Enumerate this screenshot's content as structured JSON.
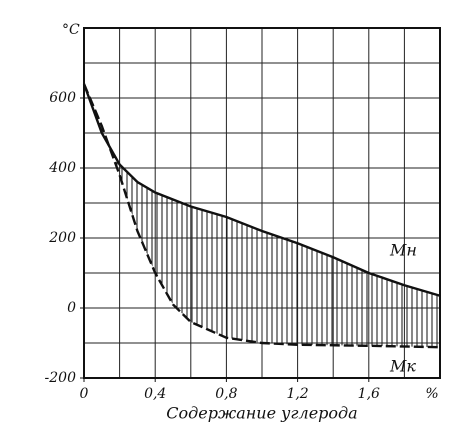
{
  "chart_data": {
    "type": "line",
    "y_label": "°C",
    "x_label": "Содержание углерода",
    "x_unit": "%",
    "xlim": [
      0,
      2.0
    ],
    "ylim": [
      -200,
      800
    ],
    "xticks": [
      0,
      {
        "value": 0.4,
        "label": "0,4"
      },
      {
        "value": 0.8,
        "label": "0,8"
      },
      {
        "value": 1.2,
        "label": "1,2"
      },
      {
        "value": 1.6,
        "label": "1,6"
      }
    ],
    "yticks": [
      -200,
      0,
      200,
      400,
      600
    ],
    "x_grid": [
      0.2,
      0.4,
      0.6,
      0.8,
      1.0,
      1.2,
      1.4,
      1.6,
      1.8
    ],
    "y_grid": [
      -100,
      0,
      100,
      200,
      300,
      400,
      500,
      600,
      700
    ],
    "grid": true,
    "color": "#111111",
    "series": [
      {
        "name": "Mн",
        "x": [
          0,
          0.1,
          0.2,
          0.3,
          0.4,
          0.6,
          0.8,
          1.0,
          1.2,
          1.4,
          1.6,
          1.8,
          2.0
        ],
        "values": [
          640,
          500,
          410,
          360,
          330,
          290,
          260,
          220,
          185,
          145,
          100,
          65,
          35
        ]
      },
      {
        "name": "Mк",
        "x": [
          0,
          0.1,
          0.2,
          0.3,
          0.4,
          0.5,
          0.6,
          0.8,
          1.0,
          1.2,
          1.6,
          2.0
        ],
        "values": [
          640,
          520,
          380,
          220,
          100,
          10,
          -40,
          -85,
          -100,
          -105,
          -108,
          -112
        ]
      }
    ]
  }
}
